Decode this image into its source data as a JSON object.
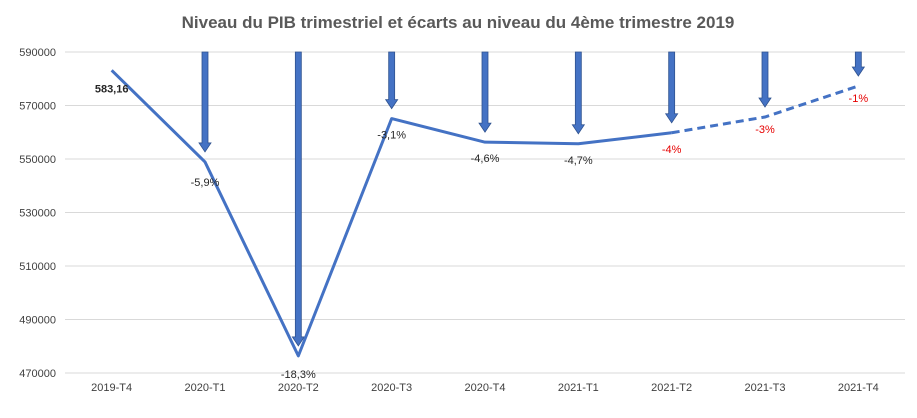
{
  "chart_data": {
    "type": "line",
    "title": "Niveau du PIB trimestriel et écarts au niveau du 4ème trimestre 2019",
    "categories": [
      "2019-T4",
      "2020-T1",
      "2020-T2",
      "2020-T3",
      "2020-T4",
      "2021-T1",
      "2021-T2",
      "2021-T3",
      "2021-T4"
    ],
    "values": [
      583.16,
      548.9,
      476.4,
      565.1,
      556.3,
      555.7,
      559.8,
      565.7,
      577.3
    ],
    "ylim": [
      470000,
      590000
    ],
    "yticks": [
      470000,
      490000,
      510000,
      530000,
      550000,
      570000,
      590000
    ],
    "ytick_labels": [
      "470000",
      "490000",
      "510000",
      "530000",
      "550000",
      "570000",
      "590000"
    ],
    "solid_through_index": 6,
    "dashed_from_index": 6,
    "grid": true,
    "legend": "none",
    "data_labels": [
      {
        "text": "583,16",
        "style": "bold"
      },
      {
        "text": "-5,9%",
        "style": "normal"
      },
      {
        "text": "-18,3%",
        "style": "normal"
      },
      {
        "text": "-3,1%",
        "style": "normal"
      },
      {
        "text": "-4,6%",
        "style": "normal"
      },
      {
        "text": "-4,7%",
        "style": "normal"
      },
      {
        "text": "-4%",
        "style": "red"
      },
      {
        "text": "-3%",
        "style": "red"
      },
      {
        "text": "-1%",
        "style": "red"
      }
    ],
    "gap_arrows": true,
    "colors": {
      "line": "#4472c4",
      "arrow": "#4472c4",
      "arrow_edge": "#2f528f",
      "forecast_label": "#e60000"
    }
  }
}
